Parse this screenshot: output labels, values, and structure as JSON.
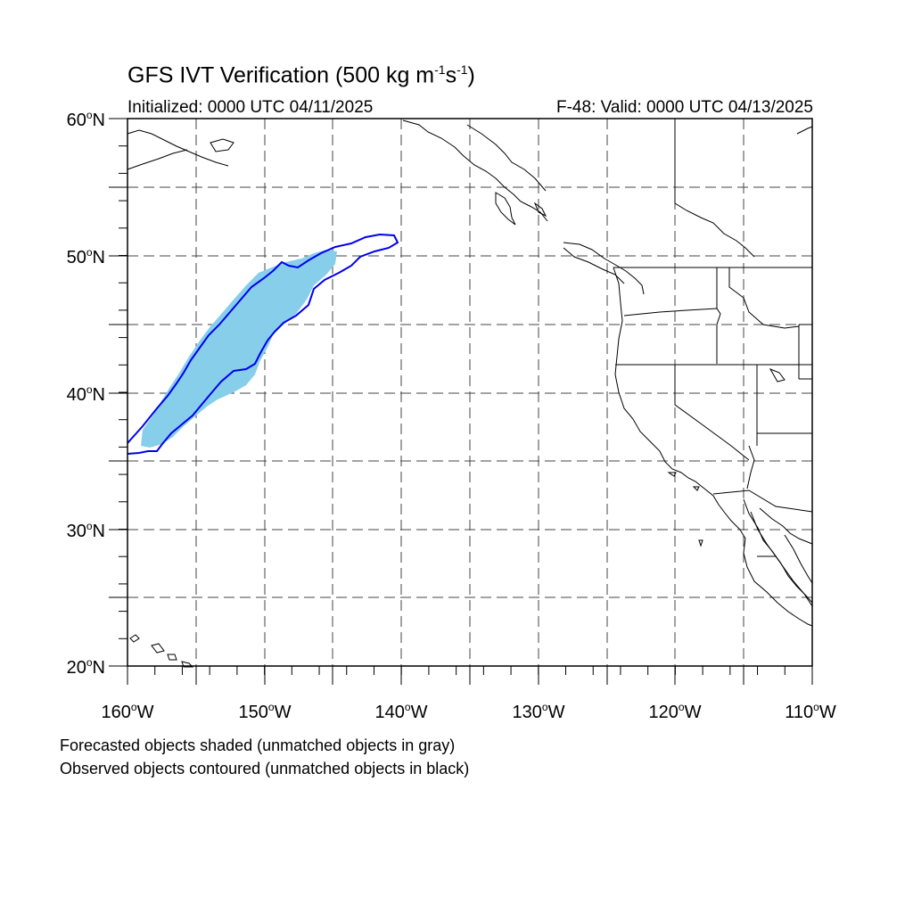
{
  "title": {
    "main": "GFS IVT Verification (500 kg m",
    "exp1": "-1",
    "mid": "s",
    "exp2": "-1",
    "end": ")"
  },
  "initialized": "Initialized: 0000 UTC 04/11/2025",
  "valid": "F-48: Valid: 0000 UTC 04/13/2025",
  "captions": {
    "forecast": "Forecasted objects shaded (unmatched objects in gray)",
    "observed": "Observed objects contoured (unmatched objects in black)"
  },
  "map": {
    "lon_range": [
      -160,
      -110
    ],
    "lat_range": [
      20,
      60
    ],
    "lat_ticks": [
      {
        "value": 20,
        "label": "20",
        "hemi": "N"
      },
      {
        "value": 30,
        "label": "30",
        "hemi": "N"
      },
      {
        "value": 40,
        "label": "40",
        "hemi": "N"
      },
      {
        "value": 50,
        "label": "50",
        "hemi": "N"
      },
      {
        "value": 60,
        "label": "60",
        "hemi": "N"
      }
    ],
    "lon_ticks": [
      {
        "value": -160,
        "label": "160",
        "hemi": "W"
      },
      {
        "value": -150,
        "label": "150",
        "hemi": "W"
      },
      {
        "value": -140,
        "label": "140",
        "hemi": "W"
      },
      {
        "value": -130,
        "label": "130",
        "hemi": "W"
      },
      {
        "value": -120,
        "label": "120",
        "hemi": "W"
      },
      {
        "value": -110,
        "label": "110",
        "hemi": "W"
      }
    ],
    "grid_interval_deg": 5,
    "grid_style": "dashed",
    "colors": {
      "forecast_fill": "#87ceeb",
      "observed_contour": "#0000ee",
      "coastline": "#000000"
    }
  }
}
